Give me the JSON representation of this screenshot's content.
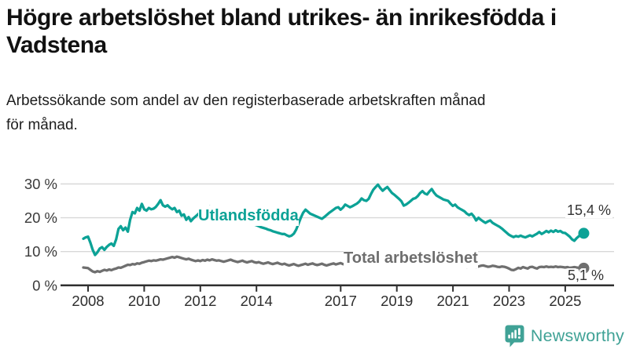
{
  "title": {
    "line1": "Högre arbetslöshet bland utrikes- än inrikesfödda i",
    "line2": "Vadstena"
  },
  "subtitle": {
    "line1": "Arbetssökande som andel av den registerbaserade arbetskraften månad",
    "line2": "för månad."
  },
  "branding": {
    "logo_text": "Newsworthy",
    "icon": "chart-speech-bubble-icon",
    "brand_color": "#40A296"
  },
  "chart_data": {
    "type": "line",
    "x_unit": "month",
    "x_start_year": 2007.8333,
    "x_step_years": 0.0833,
    "xlim": [
      2007.0,
      2026.7
    ],
    "ylim": [
      0,
      32
    ],
    "grid": "horizontal",
    "x_ticks": [
      2008,
      2010,
      2012,
      2014,
      2017,
      2019,
      2021,
      2023,
      2025
    ],
    "y_ticks": [
      {
        "value": 30,
        "label": "30 %"
      },
      {
        "value": 20,
        "label": "20 %"
      },
      {
        "value": 10,
        "label": "10 %"
      },
      {
        "value": 0,
        "label": "0 %"
      }
    ],
    "series": [
      {
        "name": "Utlandsfödda",
        "color": "#0CA296",
        "end_label": "15,4 %",
        "end_value": 15.4,
        "values": [
          13.8,
          14.2,
          14.4,
          12.6,
          10.5,
          9.0,
          9.8,
          10.9,
          11.3,
          10.5,
          11.4,
          12.0,
          12.4,
          11.7,
          13.6,
          16.7,
          17.5,
          16.3,
          17.1,
          15.9,
          19.4,
          21.7,
          21.3,
          22.9,
          22.1,
          24.1,
          22.5,
          22.1,
          22.9,
          22.5,
          22.7,
          23.2,
          24.1,
          25.2,
          23.7,
          23.3,
          23.7,
          23.0,
          22.5,
          22.9,
          21.7,
          22.1,
          20.6,
          21.0,
          19.4,
          20.2,
          19.0,
          19.8,
          20.4,
          21.0,
          21.7,
          22.1,
          22.5,
          22.9,
          23.3,
          23.0,
          22.7,
          22.4,
          22.2,
          22.0,
          21.8,
          21.5,
          21.2,
          21.0,
          20.7,
          20.4,
          20.1,
          19.8,
          19.5,
          19.2,
          18.9,
          18.6,
          18.3,
          18.0,
          17.8,
          17.5,
          17.2,
          17.0,
          16.8,
          16.5,
          16.3,
          16.0,
          15.8,
          15.6,
          15.4,
          15.2,
          15.2,
          14.8,
          14.5,
          14.7,
          15.3,
          16.5,
          18.2,
          20.0,
          21.5,
          22.4,
          21.8,
          21.2,
          20.9,
          20.6,
          20.3,
          20.0,
          19.7,
          20.2,
          20.8,
          21.4,
          21.9,
          22.4,
          22.9,
          23.1,
          22.4,
          23.0,
          23.9,
          23.5,
          23.1,
          23.4,
          23.8,
          24.2,
          24.8,
          25.7,
          25.2,
          25.0,
          25.6,
          27.0,
          28.3,
          29.1,
          29.8,
          28.8,
          28.0,
          28.6,
          29.1,
          28.2,
          27.3,
          26.8,
          26.2,
          25.6,
          24.9,
          23.6,
          23.9,
          24.4,
          25.0,
          25.6,
          25.8,
          26.4,
          27.3,
          27.9,
          27.2,
          26.9,
          27.8,
          28.5,
          27.4,
          26.6,
          26.2,
          25.8,
          25.4,
          25.2,
          25.0,
          24.2,
          23.5,
          23.9,
          23.1,
          22.7,
          22.3,
          21.9,
          21.2,
          20.8,
          21.2,
          20.4,
          19.2,
          20.0,
          19.4,
          18.9,
          18.5,
          18.9,
          19.2,
          18.5,
          18.1,
          17.7,
          17.3,
          16.8,
          16.2,
          15.6,
          15.0,
          14.6,
          14.3,
          14.6,
          14.4,
          14.7,
          14.4,
          14.2,
          14.5,
          14.8,
          14.5,
          14.9,
          15.3,
          15.8,
          15.2,
          15.6,
          16.1,
          15.7,
          16.2,
          15.8,
          16.3,
          15.9,
          16.1,
          15.6,
          15.5,
          15.0,
          14.4,
          13.6,
          13.2,
          14.0,
          14.6,
          15.4
        ]
      },
      {
        "name": "Total arbetslöshet",
        "color": "#6F6F6F",
        "end_label": "5,1 %",
        "end_value": 5.1,
        "values": [
          5.3,
          5.2,
          5.1,
          4.6,
          4.1,
          3.9,
          4.2,
          4.0,
          4.3,
          4.6,
          4.4,
          4.7,
          4.5,
          4.8,
          5.0,
          5.3,
          5.2,
          5.5,
          5.8,
          6.1,
          6.0,
          6.3,
          6.2,
          6.5,
          6.4,
          6.7,
          6.9,
          7.1,
          7.3,
          7.2,
          7.4,
          7.3,
          7.5,
          7.7,
          7.6,
          7.8,
          8.0,
          8.2,
          8.4,
          8.2,
          8.5,
          8.3,
          8.1,
          7.9,
          7.7,
          7.9,
          7.6,
          7.4,
          7.2,
          7.4,
          7.2,
          7.5,
          7.3,
          7.6,
          7.4,
          7.7,
          7.5,
          7.3,
          7.4,
          7.2,
          7.0,
          7.2,
          7.4,
          7.6,
          7.3,
          7.1,
          6.9,
          7.1,
          7.3,
          7.0,
          6.8,
          7.0,
          7.2,
          6.9,
          6.7,
          6.9,
          6.6,
          6.4,
          6.6,
          6.8,
          6.5,
          6.3,
          6.5,
          6.7,
          6.4,
          6.2,
          6.4,
          6.1,
          5.9,
          6.1,
          6.3,
          6.0,
          5.8,
          6.0,
          6.2,
          6.4,
          6.1,
          6.3,
          6.5,
          6.2,
          6.0,
          6.2,
          6.4,
          6.1,
          5.9,
          6.1,
          6.3,
          6.5,
          6.2,
          6.4,
          6.6,
          6.3,
          6.1,
          6.3,
          6.5,
          6.2,
          6.0,
          6.2,
          6.4,
          6.1,
          6.3,
          6.5,
          6.3,
          6.1,
          5.9,
          6.1,
          6.3,
          6.0,
          5.8,
          6.0,
          6.2,
          6.0,
          5.8,
          6.0,
          6.2,
          6.0,
          5.8,
          6.0,
          6.2,
          6.4,
          6.2,
          6.0,
          6.2,
          6.4,
          6.6,
          6.8,
          7.0,
          7.2,
          7.4,
          7.6,
          7.4,
          7.2,
          7.0,
          6.8,
          6.6,
          6.4,
          6.2,
          6.0,
          5.8,
          6.0,
          6.2,
          6.0,
          5.8,
          5.6,
          5.4,
          5.6,
          5.8,
          5.6,
          5.4,
          5.6,
          5.8,
          5.9,
          5.7,
          5.5,
          5.6,
          5.8,
          5.7,
          5.5,
          5.4,
          5.6,
          5.5,
          5.3,
          5.0,
          4.6,
          4.5,
          4.8,
          5.2,
          5.0,
          5.4,
          5.2,
          5.0,
          5.4,
          5.5,
          5.2,
          5.0,
          5.4,
          5.5,
          5.4,
          5.6,
          5.4,
          5.5,
          5.4,
          5.6,
          5.4,
          5.5,
          5.4,
          5.3,
          5.4,
          5.2,
          5.3,
          5.4,
          5.3,
          5.2,
          5.1
        ]
      }
    ]
  }
}
